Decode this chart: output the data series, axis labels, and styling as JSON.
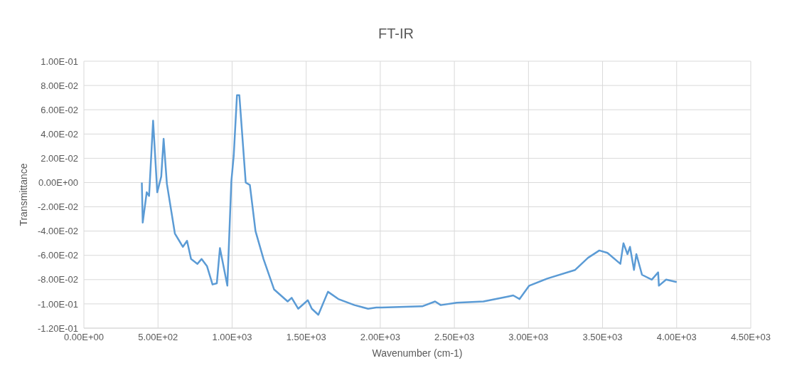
{
  "chart_data": {
    "type": "line",
    "title": "FT-IR",
    "xlabel": "Wavenumber (cm-1)",
    "ylabel": "Transmittance",
    "x": [
      391,
      397,
      424,
      440,
      467,
      495,
      522,
      538,
      560,
      614,
      668,
      696,
      723,
      766,
      794,
      831,
      868,
      897,
      918,
      968,
      995,
      1011,
      1033,
      1049,
      1092,
      1120,
      1158,
      1212,
      1283,
      1375,
      1402,
      1446,
      1511,
      1538,
      1582,
      1647,
      1717,
      1826,
      1918,
      1973,
      2011,
      2283,
      2370,
      2408,
      2516,
      2696,
      2859,
      2897,
      2940,
      3005,
      3130,
      3315,
      3402,
      3478,
      3533,
      3620,
      3641,
      3668,
      3685,
      3712,
      3728,
      3766,
      3832,
      3875,
      3880,
      3929,
      4000
    ],
    "series": [
      {
        "color": "#5b9bd5",
        "values": [
          0,
          -0.033,
          -0.008,
          -0.011,
          0.051,
          -0.008,
          0.005,
          0.036,
          -0.001,
          -0.042,
          -0.053,
          -0.048,
          -0.063,
          -0.067,
          -0.063,
          -0.069,
          -0.084,
          -0.083,
          -0.054,
          -0.085,
          0.001,
          0.022,
          0.072,
          0.072,
          0,
          -0.002,
          -0.04,
          -0.063,
          -0.088,
          -0.098,
          -0.095,
          -0.104,
          -0.097,
          -0.104,
          -0.109,
          -0.09,
          -0.096,
          -0.101,
          -0.104,
          -0.103,
          -0.103,
          -0.102,
          -0.098,
          -0.101,
          -0.099,
          -0.098,
          -0.094,
          -0.093,
          -0.096,
          -0.085,
          -0.079,
          -0.072,
          -0.062,
          -0.056,
          -0.058,
          -0.067,
          -0.05,
          -0.059,
          -0.053,
          -0.072,
          -0.059,
          -0.076,
          -0.08,
          -0.074,
          -0.085,
          -0.08,
          -0.082
        ]
      }
    ],
    "xlim": [
      0,
      4500
    ],
    "xticks": [
      {
        "value": 0,
        "label": "0.00E+00"
      },
      {
        "value": 500,
        "label": "5.00E+02"
      },
      {
        "value": 1000,
        "label": "1.00E+03"
      },
      {
        "value": 1500,
        "label": "1.50E+03"
      },
      {
        "value": 2000,
        "label": "2.00E+03"
      },
      {
        "value": 2500,
        "label": "2.50E+03"
      },
      {
        "value": 3000,
        "label": "3.00E+03"
      },
      {
        "value": 3500,
        "label": "3.50E+03"
      },
      {
        "value": 4000,
        "label": "4.00E+03"
      },
      {
        "value": 4500,
        "label": "4.50E+03"
      }
    ],
    "ylim": [
      -0.12,
      0.1
    ],
    "yticks": [
      {
        "value": -0.12,
        "label": "-1.20E-01"
      },
      {
        "value": -0.1,
        "label": "-1.00E-01"
      },
      {
        "value": -0.08,
        "label": "-8.00E-02"
      },
      {
        "value": -0.06,
        "label": "-6.00E-02"
      },
      {
        "value": -0.04,
        "label": "-4.00E-02"
      },
      {
        "value": -0.02,
        "label": "-2.00E-02"
      },
      {
        "value": 0,
        "label": "0.00E+00"
      },
      {
        "value": 0.02,
        "label": "2.00E-02"
      },
      {
        "value": 0.04,
        "label": "4.00E-02"
      },
      {
        "value": 0.06,
        "label": "6.00E-02"
      },
      {
        "value": 0.08,
        "label": "8.00E-02"
      },
      {
        "value": 0.1,
        "label": "1.00E-01"
      }
    ],
    "grid": true,
    "marker": "none",
    "line_style": "solid"
  }
}
